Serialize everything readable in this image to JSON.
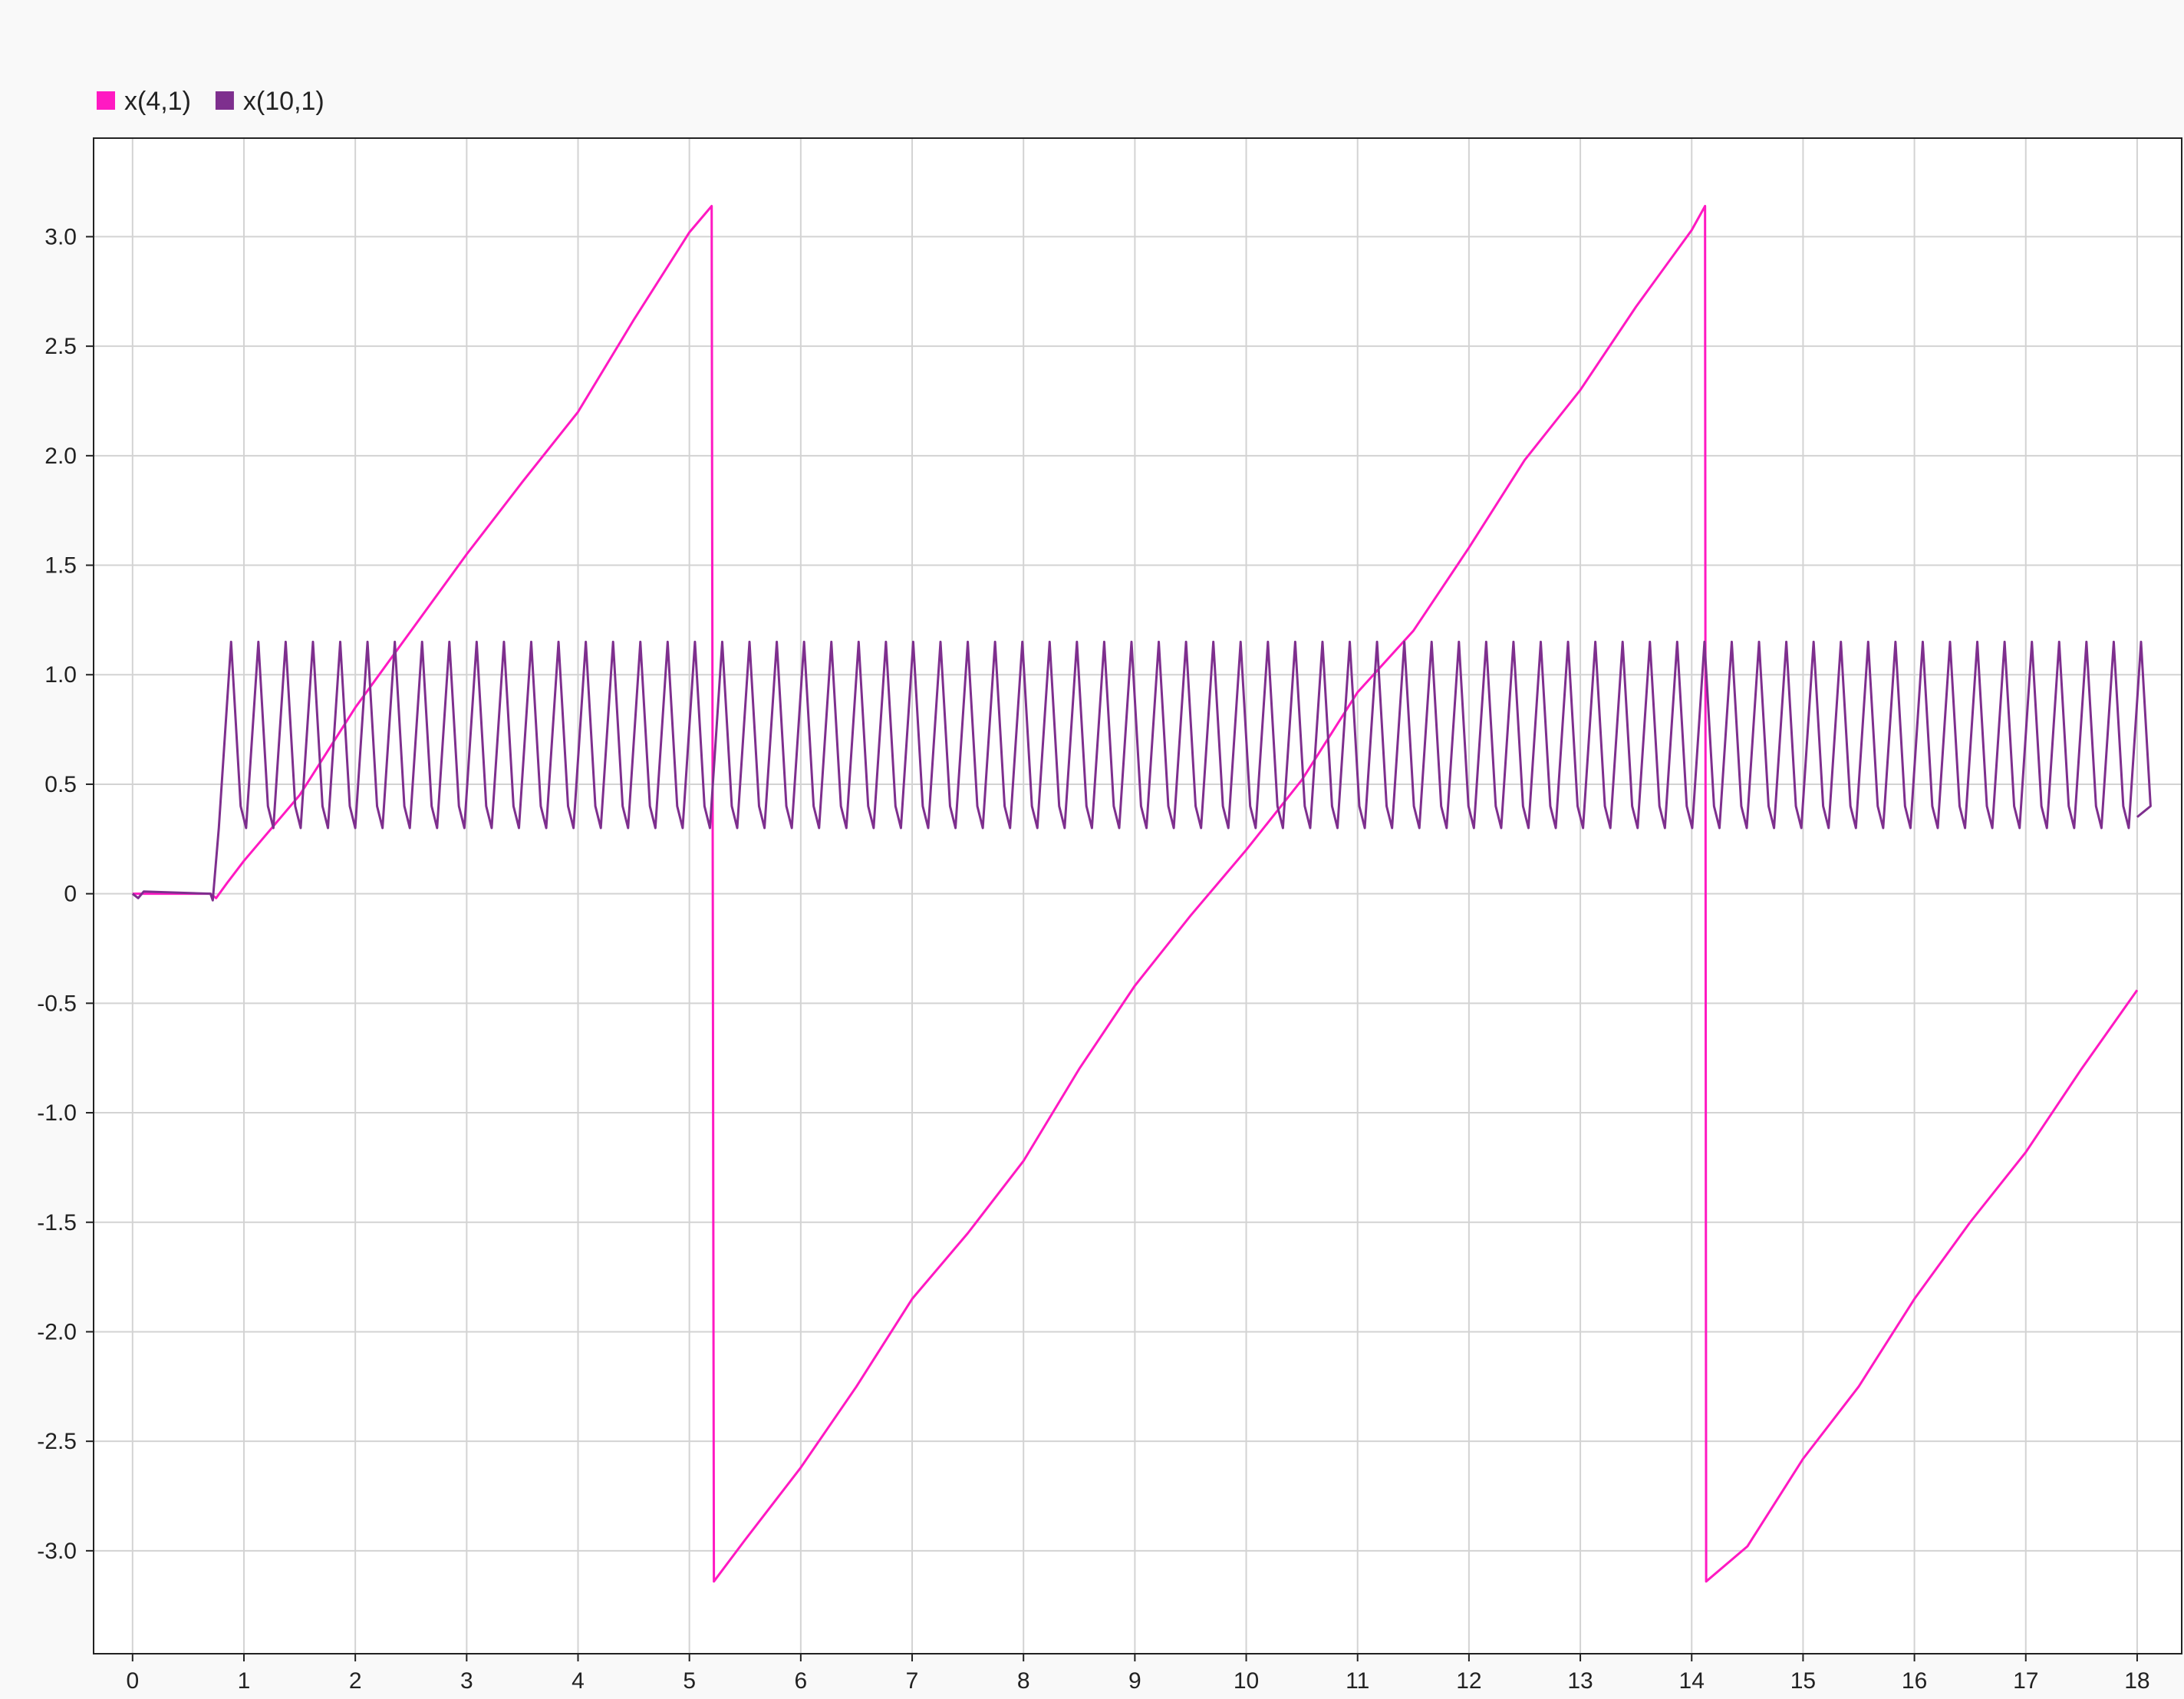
{
  "chart_data": {
    "type": "line",
    "title": "",
    "xlabel": "",
    "ylabel": "",
    "xlim": [
      -0.35,
      18.4
    ],
    "ylim": [
      -3.47,
      3.45
    ],
    "grid": true,
    "legend_position": "top-left",
    "x_ticks": [
      0,
      1,
      2,
      3,
      4,
      5,
      6,
      7,
      8,
      9,
      10,
      11,
      12,
      13,
      14,
      15,
      16,
      17,
      18
    ],
    "x_tick_labels": [
      "0",
      "1",
      "2",
      "3",
      "4",
      "5",
      "6",
      "7",
      "8",
      "9",
      "10",
      "11",
      "12",
      "13",
      "14",
      "15",
      "16",
      "17",
      "18"
    ],
    "y_ticks": [
      3.0,
      2.5,
      2.0,
      1.5,
      1.0,
      0.5,
      0,
      -0.5,
      -1.0,
      -1.5,
      -2.0,
      -2.5,
      -3.0
    ],
    "y_tick_labels": [
      "3.0",
      "2.5",
      "2.0",
      "1.5",
      "1.0",
      "0.5",
      "0",
      "-0.5",
      "-1.0",
      "-1.5",
      "-2.0",
      "-2.5",
      "-3.0"
    ],
    "colors": {
      "background": "#f9f9f9",
      "plot_background": "#ffffff",
      "grid": "#d3d3d3",
      "axis": "#222222"
    },
    "series": [
      {
        "name": "x(4,1)",
        "color": "#ff19c2",
        "points": [
          [
            0,
            0
          ],
          [
            0.7,
            0
          ],
          [
            0.75,
            -0.02
          ],
          [
            0.85,
            0.05
          ],
          [
            1.0,
            0.15
          ],
          [
            1.5,
            0.45
          ],
          [
            2.0,
            0.85
          ],
          [
            2.5,
            1.2
          ],
          [
            3.0,
            1.55
          ],
          [
            3.5,
            1.88
          ],
          [
            4.0,
            2.2
          ],
          [
            4.5,
            2.62
          ],
          [
            5.0,
            3.02
          ],
          [
            5.2,
            3.14
          ],
          [
            5.22,
            -3.14
          ],
          [
            5.5,
            -2.95
          ],
          [
            6.0,
            -2.62
          ],
          [
            6.5,
            -2.25
          ],
          [
            7.0,
            -1.85
          ],
          [
            7.5,
            -1.55
          ],
          [
            8.0,
            -1.22
          ],
          [
            8.5,
            -0.8
          ],
          [
            9.0,
            -0.42
          ],
          [
            9.5,
            -0.1
          ],
          [
            10.0,
            0.2
          ],
          [
            10.5,
            0.52
          ],
          [
            11.0,
            0.92
          ],
          [
            11.5,
            1.2
          ],
          [
            12.0,
            1.58
          ],
          [
            12.5,
            1.98
          ],
          [
            13.0,
            2.3
          ],
          [
            13.5,
            2.68
          ],
          [
            14.0,
            3.03
          ],
          [
            14.12,
            3.14
          ],
          [
            14.13,
            -3.14
          ],
          [
            14.5,
            -2.98
          ],
          [
            15.0,
            -2.58
          ],
          [
            15.5,
            -2.25
          ],
          [
            16.0,
            -1.85
          ],
          [
            16.5,
            -1.5
          ],
          [
            17.0,
            -1.18
          ],
          [
            17.5,
            -0.8
          ],
          [
            18.0,
            -0.44
          ]
        ]
      },
      {
        "name": "x(10,1)",
        "color": "#7e2f8e",
        "waveform": {
          "initial_points": [
            [
              0,
              0
            ],
            [
              0.05,
              -0.02
            ],
            [
              0.1,
              0.01
            ],
            [
              0.7,
              0
            ],
            [
              0.72,
              -0.03
            ]
          ],
          "start": 0.75,
          "end": 18.0,
          "period": 0.245,
          "min": 0.3,
          "max": 1.15
        }
      }
    ]
  }
}
